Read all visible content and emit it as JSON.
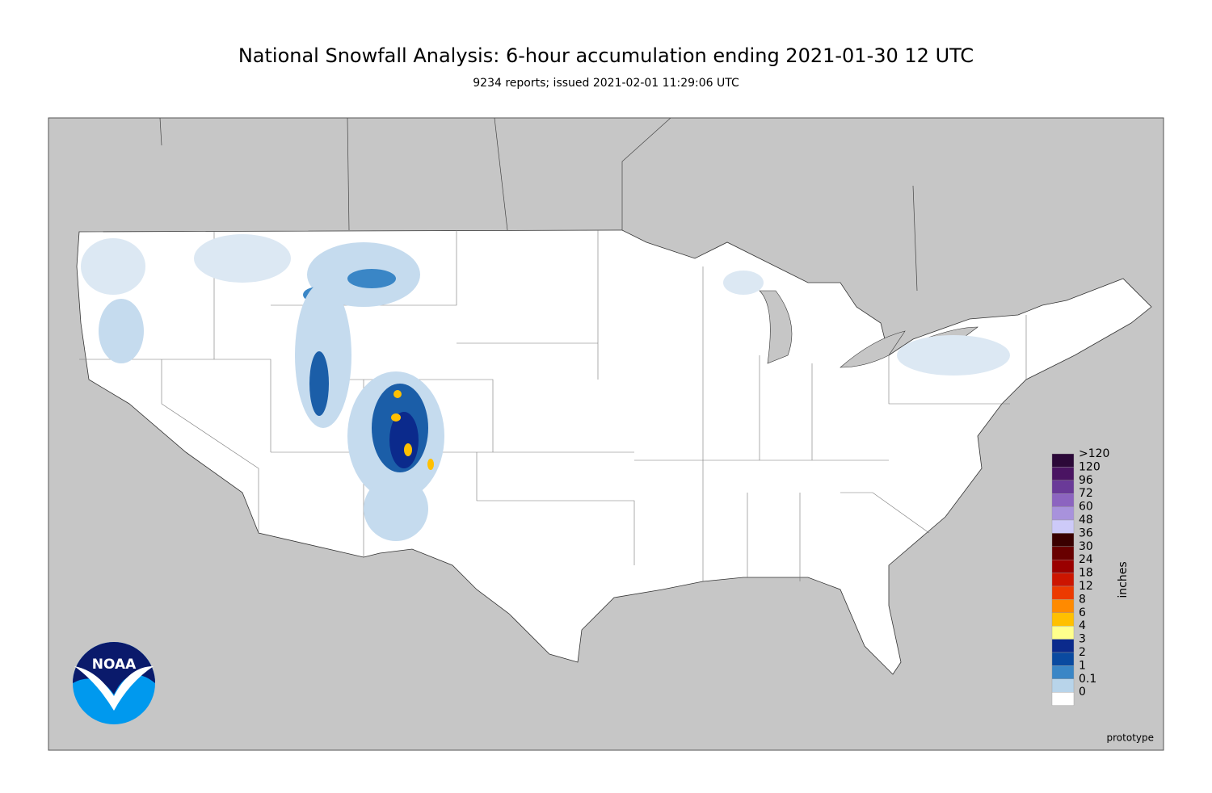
{
  "header": {
    "title": "National Snowfall Analysis: 6-hour accumulation ending 2021-01-30 12 UTC",
    "subtitle": "9234 reports; issued 2021-02-01 11:29:06 UTC"
  },
  "legend": {
    "unit": "inches",
    "items": [
      {
        "label": ">120",
        "color": "#2b0838"
      },
      {
        "label": "120",
        "color": "#4a1462"
      },
      {
        "label": "96",
        "color": "#6a3a98"
      },
      {
        "label": "72",
        "color": "#8c64c0"
      },
      {
        "label": "60",
        "color": "#a892dc"
      },
      {
        "label": "48",
        "color": "#cdcaf8"
      },
      {
        "label": "36",
        "color": "#3a0000"
      },
      {
        "label": "30",
        "color": "#680000"
      },
      {
        "label": "24",
        "color": "#9a0000"
      },
      {
        "label": "18",
        "color": "#cc1500"
      },
      {
        "label": "12",
        "color": "#ec3a00"
      },
      {
        "label": "8",
        "color": "#ff8a00"
      },
      {
        "label": "6",
        "color": "#ffc000"
      },
      {
        "label": "4",
        "color": "#ffff8c"
      },
      {
        "label": "3",
        "color": "#0b2a8c"
      },
      {
        "label": "2",
        "color": "#0a4aa0"
      },
      {
        "label": "1",
        "color": "#3a86c6"
      },
      {
        "label": "0.1",
        "color": "#b8d4ea"
      },
      {
        "label": "0",
        "color": "#ffffff"
      }
    ]
  },
  "logo": {
    "text": "NOAA"
  },
  "footer": {
    "note": "prototype"
  }
}
